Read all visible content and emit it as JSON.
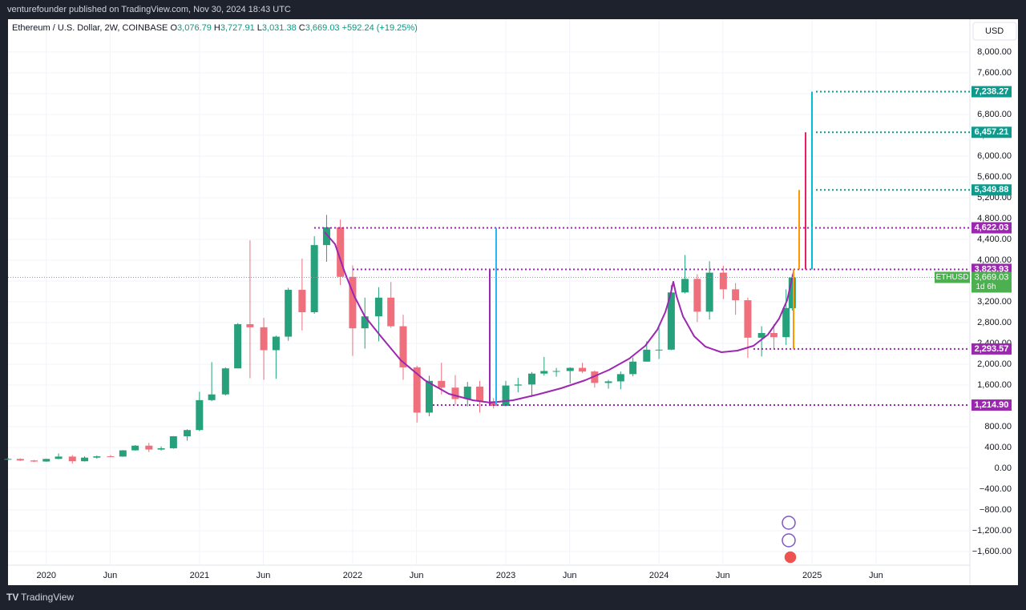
{
  "page": {
    "publisher": "venturefounder published on TradingView.com, Nov 30, 2024 18:43 UTC",
    "brand": "TradingView",
    "currency": "USD"
  },
  "chart_data": {
    "type": "candlestick",
    "symbol": "Ethereum / U.S. Dollar, 2W, COINBASE",
    "header": {
      "o_label": "O",
      "open": "3,076.79",
      "h_label": "H",
      "high": "3,727.91",
      "l_label": "L",
      "low": "3,031.38",
      "c_label": "C",
      "close": "3,669.03",
      "change": "+592.24 (+19.25%)"
    },
    "up_color": "#26a17b",
    "down_color": "#ef6f7c",
    "x": [
      2019.75,
      2019.83,
      2019.92,
      2020.0,
      2020.08,
      2020.17,
      2020.25,
      2020.33,
      2020.42,
      2020.5,
      2020.58,
      2020.67,
      2020.75,
      2020.83,
      2020.92,
      2021.0,
      2021.08,
      2021.17,
      2021.25,
      2021.33,
      2021.42,
      2021.5,
      2021.58,
      2021.67,
      2021.75,
      2021.83,
      2021.92,
      2022.0,
      2022.08,
      2022.17,
      2022.25,
      2022.33,
      2022.42,
      2022.5,
      2022.58,
      2022.67,
      2022.75,
      2022.83,
      2022.92,
      2023.0,
      2023.08,
      2023.17,
      2023.25,
      2023.33,
      2023.42,
      2023.5,
      2023.58,
      2023.67,
      2023.75,
      2023.83,
      2023.92,
      2024.0,
      2024.08,
      2024.17,
      2024.25,
      2024.33,
      2024.42,
      2024.5,
      2024.58,
      2024.67,
      2024.75,
      2024.83,
      2024.87
    ],
    "open": [
      180,
      180,
      150,
      130,
      180,
      225,
      135,
      205,
      230,
      225,
      345,
      435,
      360,
      385,
      615,
      735,
      1310,
      1420,
      1920,
      2770,
      2710,
      2270,
      2530,
      3430,
      3000,
      4290,
      4630,
      3680,
      2690,
      2920,
      3280,
      2730,
      1940,
      1070,
      1680,
      1550,
      1330,
      1570,
      1290,
      1200,
      1590,
      1610,
      1820,
      1870,
      1870,
      1930,
      1860,
      1640,
      1670,
      1810,
      2050,
      2280,
      2280,
      3380,
      3640,
      3010,
      3760,
      3440,
      3230,
      2510,
      2600,
      2520,
      3076.79
    ],
    "high": [
      200,
      190,
      160,
      185,
      285,
      255,
      230,
      245,
      255,
      350,
      445,
      490,
      420,
      620,
      750,
      1470,
      2040,
      1940,
      2790,
      4380,
      2890,
      2550,
      3470,
      4030,
      4460,
      4870,
      4780,
      3900,
      3280,
      3480,
      3580,
      2950,
      1970,
      1780,
      2030,
      1790,
      1660,
      1680,
      1350,
      1680,
      1740,
      1850,
      2140,
      1930,
      1940,
      2030,
      1880,
      1700,
      1860,
      2130,
      2440,
      2720,
      3520,
      4100,
      3730,
      3980,
      3890,
      3560,
      3280,
      2730,
      2770,
      3440,
      3727.91
    ],
    "low": [
      160,
      140,
      120,
      125,
      175,
      90,
      130,
      185,
      215,
      220,
      340,
      310,
      340,
      375,
      530,
      715,
      1290,
      1400,
      1920,
      1730,
      1700,
      1720,
      2450,
      2650,
      2970,
      3970,
      3520,
      2160,
      2300,
      2440,
      2700,
      1700,
      880,
      1000,
      1420,
      1220,
      1190,
      1070,
      1150,
      1190,
      1460,
      1370,
      1780,
      1760,
      1630,
      1830,
      1550,
      1530,
      1520,
      1770,
      2050,
      2100,
      2270,
      3360,
      2810,
      2860,
      3250,
      2950,
      2120,
      2150,
      2310,
      2370,
      3031.38
    ],
    "close": [
      180,
      150,
      130,
      180,
      225,
      135,
      205,
      230,
      225,
      345,
      435,
      360,
      385,
      615,
      735,
      1310,
      1420,
      1920,
      2770,
      2710,
      2270,
      2530,
      3430,
      3000,
      4290,
      4630,
      3680,
      2690,
      2920,
      3280,
      2730,
      1940,
      1070,
      1680,
      1550,
      1330,
      1570,
      1290,
      1200,
      1590,
      1610,
      1820,
      1870,
      1870,
      1930,
      1860,
      1640,
      1670,
      1810,
      2050,
      2280,
      2280,
      3380,
      3640,
      3010,
      3760,
      3440,
      3230,
      2510,
      2600,
      2520,
      3080,
      3669.03
    ],
    "levels": [
      {
        "value": 7238.27,
        "label": "7,238.27",
        "color": "#0e9a8c"
      },
      {
        "value": 6457.21,
        "label": "6,457.21",
        "color": "#0e9a8c"
      },
      {
        "value": 5349.88,
        "label": "5,349.88",
        "color": "#0e9a8c"
      },
      {
        "value": 4622.03,
        "label": "4,622.03",
        "color": "#9c27b0"
      },
      {
        "value": 3823.93,
        "label": "3,823.93",
        "color": "#9c27b0"
      },
      {
        "value": 2293.57,
        "label": "2,293.57",
        "color": "#9c27b0"
      },
      {
        "value": 1214.9,
        "label": "1,214.90",
        "color": "#9c27b0"
      }
    ],
    "last_price": {
      "value": 3669.03,
      "label": "3,669.03",
      "ticker": "ETHUSD",
      "countdown": "1d 6h",
      "color": "#4caf50"
    },
    "xlim": [
      2019.75,
      2026.03
    ],
    "xticks": [
      {
        "value": 2020,
        "label": "2020"
      },
      {
        "value": 2020.417,
        "label": "Jun"
      },
      {
        "value": 2021,
        "label": "2021"
      },
      {
        "value": 2021.417,
        "label": "Jun"
      },
      {
        "value": 2022,
        "label": "2022"
      },
      {
        "value": 2022.417,
        "label": "Jun"
      },
      {
        "value": 2023,
        "label": "2023"
      },
      {
        "value": 2023.417,
        "label": "Jun"
      },
      {
        "value": 2024,
        "label": "2024"
      },
      {
        "value": 2024.417,
        "label": "Jun"
      },
      {
        "value": 2025,
        "label": "2025"
      },
      {
        "value": 2025.417,
        "label": "Jun"
      }
    ],
    "ylim": [
      -1862,
      8631
    ],
    "yticks": [
      {
        "value": -1600,
        "label": "−1,600.00"
      },
      {
        "value": -1200,
        "label": "−1,200.00"
      },
      {
        "value": -800,
        "label": "−800.00"
      },
      {
        "value": -400,
        "label": "−400.00"
      },
      {
        "value": 0,
        "label": "0.00"
      },
      {
        "value": 400,
        "label": "400.00"
      },
      {
        "value": 800,
        "label": "800.00"
      },
      {
        "value": 1200,
        "label": "1,200.00"
      },
      {
        "value": 1600,
        "label": "1,600.00"
      },
      {
        "value": 2000,
        "label": "2,000.00"
      },
      {
        "value": 2400,
        "label": "2,400.00"
      },
      {
        "value": 2800,
        "label": "2,800.00"
      },
      {
        "value": 3200,
        "label": "3,200.00"
      },
      {
        "value": 3600,
        "label": "3,600.00"
      },
      {
        "value": 4000,
        "label": "4,000.00"
      },
      {
        "value": 4400,
        "label": "4,400.00"
      },
      {
        "value": 4800,
        "label": "4,800.00"
      },
      {
        "value": 5200,
        "label": "5,200.00"
      },
      {
        "value": 5600,
        "label": "5,600.00"
      },
      {
        "value": 6000,
        "label": "6,000.00"
      },
      {
        "value": 6400,
        "label": "6,400.00"
      },
      {
        "value": 6800,
        "label": "6,800.00"
      },
      {
        "value": 7200,
        "label": "7,200.00"
      },
      {
        "value": 7600,
        "label": "7,600.00"
      },
      {
        "value": 8000,
        "label": "8,000.00"
      }
    ],
    "grid": true
  }
}
